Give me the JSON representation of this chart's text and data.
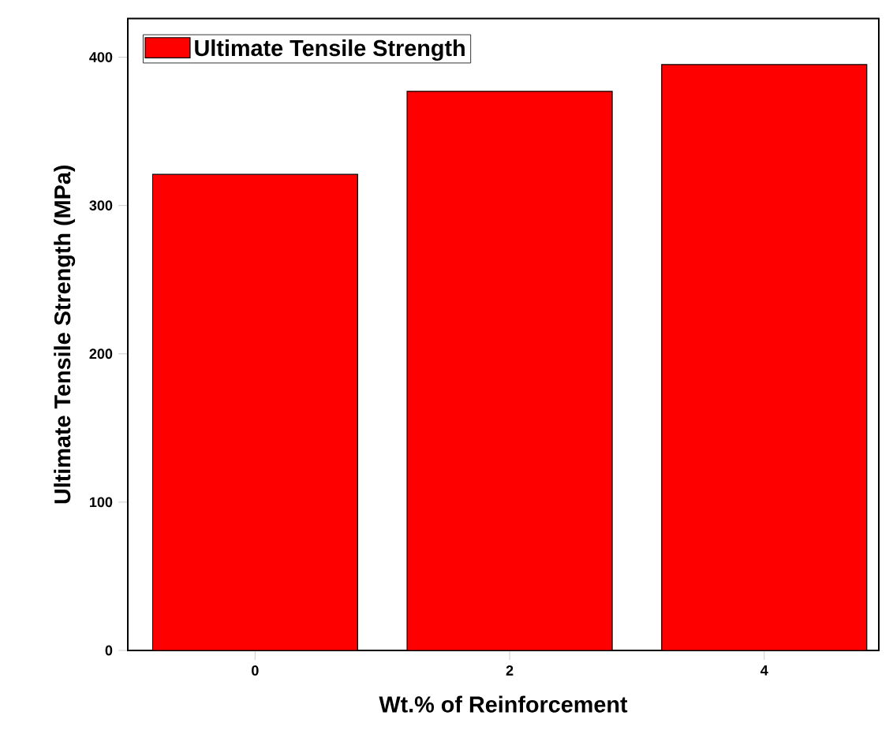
{
  "chart_data": {
    "type": "bar",
    "xlabel": "Wt.% of Reinforcement",
    "ylabel": "Ultimate Tensile Strength (MPa)",
    "categories": [
      "0",
      "2",
      "4"
    ],
    "series": [
      {
        "name": "Ultimate Tensile Strength",
        "color": "#ff0000",
        "values": [
          321,
          377,
          395
        ]
      }
    ],
    "ylim": [
      0,
      426
    ],
    "yticks": [
      0,
      100,
      200,
      300,
      400
    ],
    "legend": "top left",
    "grid": false
  }
}
